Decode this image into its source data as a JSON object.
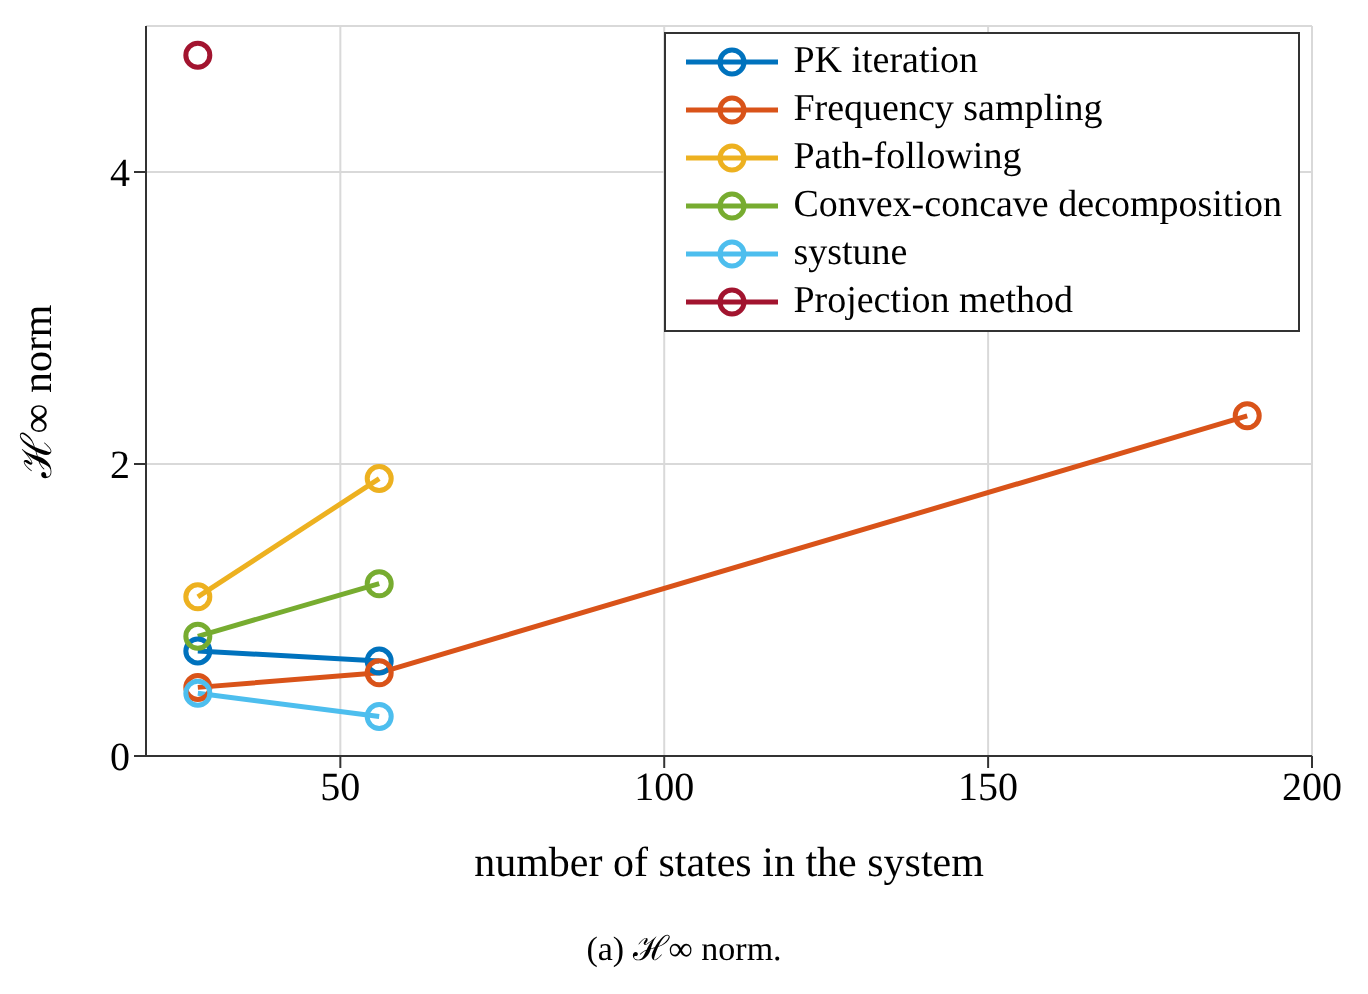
{
  "chart_data": {
    "type": "line",
    "xlabel": "number of states in the system",
    "ylabel": "ℋ∞ norm",
    "annotations": [
      "(a) ℋ∞ norm."
    ],
    "xlim": [
      20,
      200
    ],
    "xticks": [
      50,
      100,
      150,
      200
    ],
    "ylim": [
      0,
      5
    ],
    "yticks": [
      0,
      2,
      4
    ],
    "grid": true,
    "legend": "top right",
    "marker": "circle",
    "line_style": "solid",
    "series": [
      {
        "name": "PK iteration",
        "color": "#0072bd",
        "x": [
          28,
          56
        ],
        "values": [
          0.72,
          0.65
        ]
      },
      {
        "name": "Frequency sampling",
        "color": "#d95319",
        "x": [
          28,
          56,
          190
        ],
        "values": [
          0.47,
          0.57,
          2.33
        ]
      },
      {
        "name": "Path-following",
        "color": "#edb120",
        "x": [
          28,
          56
        ],
        "values": [
          1.09,
          1.9
        ]
      },
      {
        "name": "Convex-concave decomposition",
        "color": "#77ac30",
        "x": [
          28,
          56
        ],
        "values": [
          0.82,
          1.18
        ]
      },
      {
        "name": "systune",
        "color": "#4dbeee",
        "x": [
          28,
          56
        ],
        "values": [
          0.43,
          0.27
        ]
      },
      {
        "name": "Projection method",
        "color": "#a2142f",
        "x": [
          28
        ],
        "values": [
          4.8
        ]
      }
    ]
  }
}
